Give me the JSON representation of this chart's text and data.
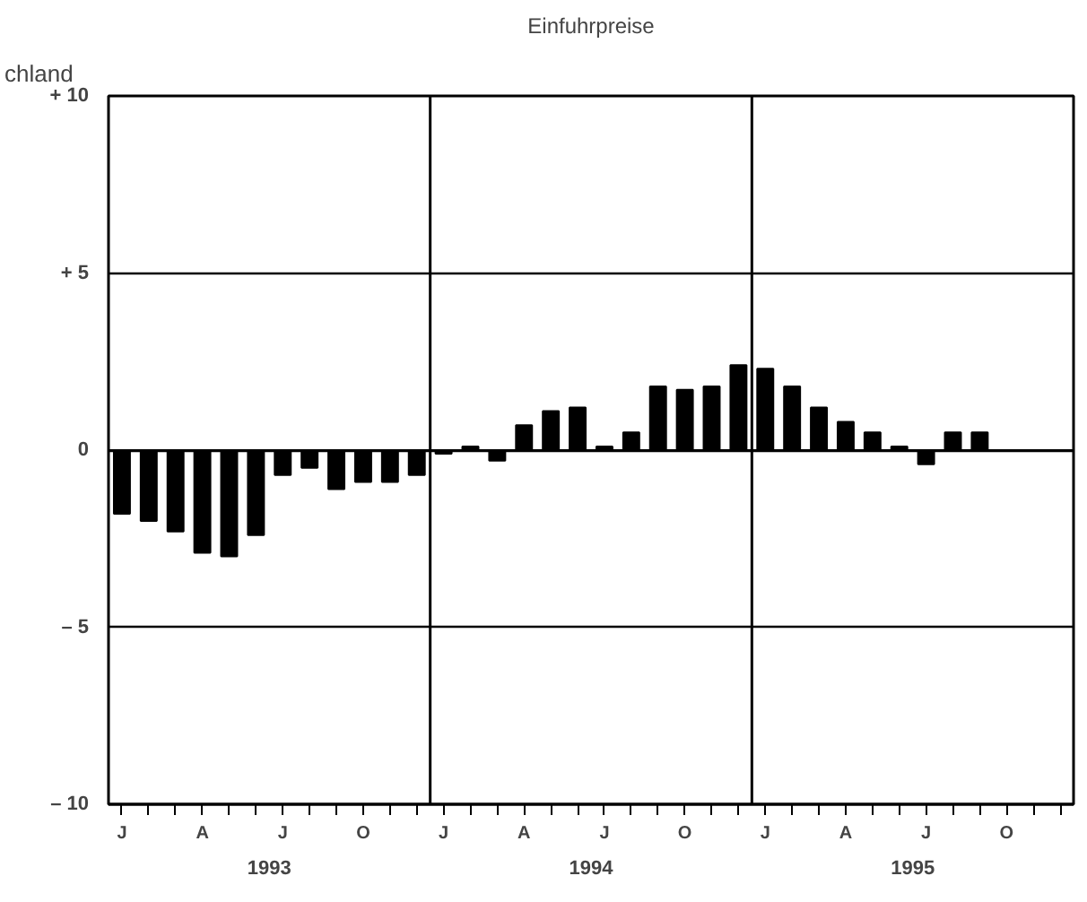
{
  "chart_data": {
    "type": "bar",
    "title": "Einfuhrpreise",
    "categories": [
      "J",
      null,
      null,
      "A",
      null,
      null,
      "J",
      null,
      null,
      "O",
      null,
      null,
      "J",
      null,
      null,
      "A",
      null,
      null,
      "J",
      null,
      null,
      "O",
      null,
      null,
      "J",
      null,
      null,
      "A",
      null,
      null,
      "J",
      null,
      null,
      "O",
      null,
      null
    ],
    "values": [
      -1.8,
      -2.0,
      -2.3,
      -2.9,
      -3.0,
      -2.4,
      -0.7,
      -0.5,
      -1.1,
      -0.9,
      -0.9,
      -0.7,
      -0.1,
      0.1,
      -0.3,
      0.7,
      1.1,
      1.2,
      0.1,
      0.5,
      1.8,
      1.7,
      1.8,
      2.4,
      2.3,
      1.8,
      1.2,
      0.8,
      0.5,
      0.1,
      -0.4,
      0.5,
      0.5,
      null,
      null,
      null
    ],
    "color": "#000000",
    "ylim": [
      -10,
      10
    ],
    "yticks": [
      {
        "value": 10,
        "label": "+ 10"
      },
      {
        "value": 5,
        "label": "+ 5"
      },
      0,
      {
        "value": -5,
        "label": "– 5"
      },
      {
        "value": -10,
        "label": "– 10"
      }
    ],
    "grid": "y",
    "annotations": [
      "chland",
      "1993",
      "1994",
      "1995"
    ]
  }
}
